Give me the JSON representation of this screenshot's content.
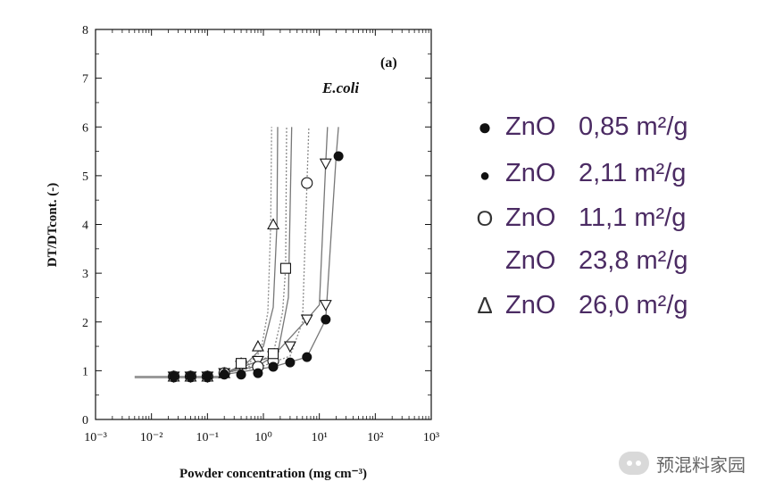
{
  "chart_data": {
    "type": "scatter",
    "title": "",
    "panel_label": "(a)",
    "organism": "E.coli",
    "xlabel": "Powder concentration (mg cm⁻³)",
    "ylabel": "DT/DTcont.  (-)",
    "x_scale": "log",
    "xlim": [
      0.001,
      1000
    ],
    "ylim": [
      0,
      8
    ],
    "grid": false,
    "legend_position": "right",
    "x_ticks": [
      {
        "value": 0.001,
        "label": "10⁻³"
      },
      {
        "value": 0.01,
        "label": "10⁻²"
      },
      {
        "value": 0.1,
        "label": "10⁻¹"
      },
      {
        "value": 1,
        "label": "10⁰"
      },
      {
        "value": 10,
        "label": "10¹"
      },
      {
        "value": 100,
        "label": "10²"
      },
      {
        "value": 1000,
        "label": "10³"
      }
    ],
    "y_ticks": [
      "0",
      "1",
      "2",
      "3",
      "4",
      "5",
      "6",
      "7",
      "8"
    ],
    "baseline": {
      "x_from": 0.005,
      "x_to": 0.2,
      "y": 0.87
    },
    "series": [
      {
        "legend_marker": "●",
        "name": "ZnO",
        "label": "0,85 m²/g",
        "marker": "filled-circle-large",
        "curve_style": "solid",
        "x": [
          0.025,
          0.05,
          0.1,
          0.2,
          0.4,
          0.8,
          1.5,
          3,
          6,
          13,
          22
        ],
        "y": [
          0.88,
          0.88,
          0.88,
          0.92,
          0.92,
          0.95,
          1.08,
          1.17,
          1.28,
          2.05,
          5.4
        ]
      },
      {
        "legend_marker": "●",
        "name": "ZnO",
        "label": "2,11 m²/g",
        "marker": "filled-circle-small",
        "curve_style": "solid",
        "x": [
          0.025,
          0.05,
          0.1,
          0.2
        ],
        "y": [
          0.88,
          0.88,
          0.88,
          0.95
        ]
      },
      {
        "legend_marker": "O",
        "name": "ZnO",
        "label": "11,1 m²/g",
        "marker": "open-circle",
        "curve_style": "solid",
        "x": [
          0.025,
          0.05,
          0.1,
          0.2,
          0.8,
          1.5,
          6
        ],
        "y": [
          0.88,
          0.88,
          0.88,
          0.95,
          1.08,
          1.2,
          4.85
        ]
      },
      {
        "legend_marker": "",
        "name": "ZnO",
        "label": "23,8 m²/g",
        "marker": "open-down-triangle",
        "curve_style": "solid",
        "x": [
          0.025,
          0.05,
          0.1,
          0.2,
          0.4,
          0.8,
          1.5,
          3,
          6,
          13,
          13
        ],
        "y": [
          0.88,
          0.88,
          0.88,
          0.95,
          1.1,
          1.2,
          1.3,
          1.5,
          2.05,
          2.35,
          5.25
        ]
      },
      {
        "legend_marker": "Δ",
        "name": "ZnO",
        "label": "26,0 m²/g",
        "marker": "open-triangle",
        "curve_style": "dotted",
        "x": [
          0.025,
          0.05,
          0.1,
          0.2,
          0.4,
          0.8,
          1.5
        ],
        "y": [
          0.88,
          0.88,
          0.88,
          0.95,
          1.15,
          1.5,
          4.0
        ]
      }
    ],
    "extra_points": [
      {
        "marker": "open-square",
        "x": 2.5,
        "y": 3.1
      },
      {
        "marker": "open-square",
        "x": 1.5,
        "y": 1.35
      },
      {
        "marker": "open-square",
        "x": 0.4,
        "y": 1.15
      }
    ],
    "curves": [
      {
        "style": "dotted",
        "asymptote_x": 1.4,
        "points": [
          [
            0.2,
            0.95
          ],
          [
            0.5,
            1.1
          ],
          [
            0.9,
            1.4
          ],
          [
            1.2,
            2.2
          ],
          [
            1.35,
            4.0
          ],
          [
            1.4,
            6.0
          ]
        ]
      },
      {
        "style": "dotted",
        "asymptote_x": 2.6,
        "points": [
          [
            0.2,
            0.95
          ],
          [
            0.6,
            1.1
          ],
          [
            1.5,
            1.35
          ],
          [
            2.2,
            2.2
          ],
          [
            2.5,
            3.1
          ],
          [
            2.6,
            6.0
          ]
        ]
      },
      {
        "style": "solid",
        "asymptote_x": 1.8,
        "points": [
          [
            0.2,
            0.95
          ],
          [
            0.5,
            1.15
          ],
          [
            1.0,
            1.5
          ],
          [
            1.5,
            2.3
          ],
          [
            1.75,
            4.0
          ],
          [
            1.8,
            6.0
          ]
        ]
      },
      {
        "style": "solid",
        "asymptote_x": 3.2,
        "points": [
          [
            0.2,
            0.95
          ],
          [
            0.8,
            1.1
          ],
          [
            1.8,
            1.35
          ],
          [
            2.8,
            2.5
          ],
          [
            3.2,
            6.0
          ]
        ]
      },
      {
        "style": "dotted",
        "asymptote_x": 6.5,
        "points": [
          [
            0.2,
            0.95
          ],
          [
            1.0,
            1.1
          ],
          [
            3.0,
            1.3
          ],
          [
            5.0,
            2.0
          ],
          [
            6.0,
            4.85
          ],
          [
            6.5,
            6.0
          ]
        ]
      },
      {
        "style": "solid",
        "asymptote_x": 14,
        "points": [
          [
            0.2,
            0.95
          ],
          [
            1.5,
            1.3
          ],
          [
            6.0,
            2.05
          ],
          [
            10.0,
            2.35
          ],
          [
            13.0,
            5.25
          ],
          [
            14.0,
            6.0
          ]
        ]
      },
      {
        "style": "solid",
        "asymptote_x": 22,
        "points": [
          [
            0.2,
            0.92
          ],
          [
            1.5,
            1.08
          ],
          [
            6.0,
            1.28
          ],
          [
            13.0,
            2.05
          ],
          [
            20.0,
            5.4
          ],
          [
            22.0,
            6.0
          ]
        ]
      }
    ]
  },
  "watermark": {
    "icon": "chat-bubble-icon",
    "text": "预混料家园"
  },
  "colors": {
    "legend_text": "#4b2b63",
    "plot_ink": "#111111",
    "curve_gray": "#777777"
  }
}
